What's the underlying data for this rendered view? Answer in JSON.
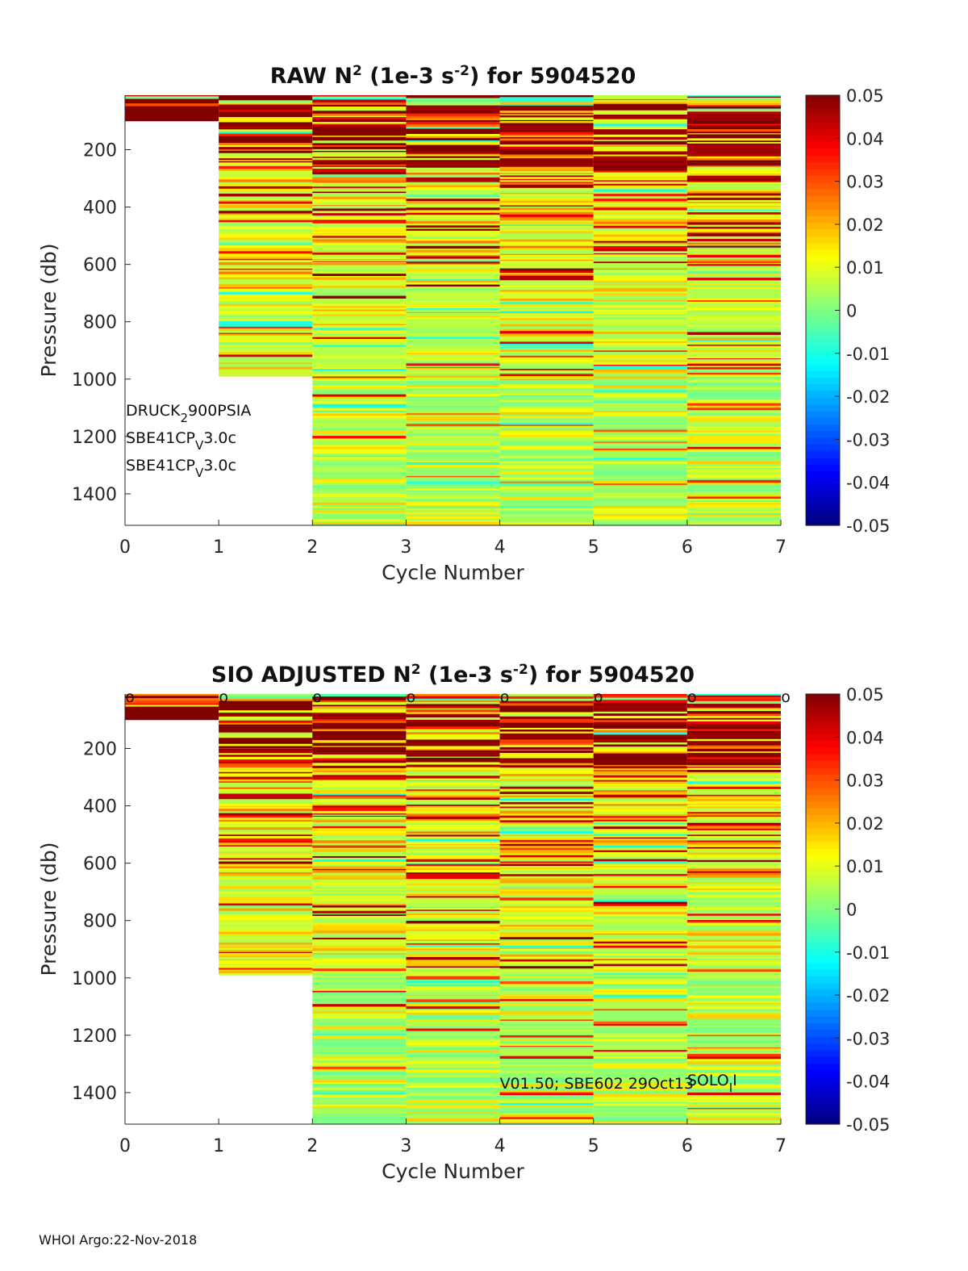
{
  "footer": "WHOI Argo:22-Nov-2018",
  "chart_data": [
    {
      "type": "heatmap",
      "id": "raw",
      "title_prefix": "RAW N",
      "title_sup": "2",
      "title_mid": " (1e-3 s",
      "title_sup2": "-2",
      "title_suffix": ") for 5904520",
      "xlabel": "Cycle Number",
      "ylabel": "Pressure (db)",
      "xlim": [
        0,
        7
      ],
      "ylim": [
        1510,
        10
      ],
      "xticks": [
        "0",
        "1",
        "2",
        "3",
        "4",
        "5",
        "6",
        "7"
      ],
      "yticks": [
        "200",
        "400",
        "600",
        "800",
        "1000",
        "1200",
        "1400"
      ],
      "ytick_values": [
        200,
        400,
        600,
        800,
        1000,
        1200,
        1400
      ],
      "colorbar": {
        "min": -0.05,
        "max": 0.05,
        "ticks": [
          "0.05",
          "0.04",
          "0.03",
          "0.02",
          "0.01",
          "0",
          "-0.01",
          "-0.02",
          "-0.03",
          "-0.04",
          "-0.05"
        ],
        "tick_values": [
          0.05,
          0.04,
          0.03,
          0.02,
          0.01,
          0,
          -0.01,
          -0.02,
          -0.03,
          -0.04,
          -0.05
        ],
        "colormap": "jet"
      },
      "profiles": [
        {
          "cycle": 0,
          "max_pressure": 100
        },
        {
          "cycle": 1,
          "max_pressure": 990
        },
        {
          "cycle": 2,
          "max_pressure": 1510
        },
        {
          "cycle": 3,
          "max_pressure": 1510
        },
        {
          "cycle": 4,
          "max_pressure": 1510
        },
        {
          "cycle": 5,
          "max_pressure": 1510
        },
        {
          "cycle": 6,
          "max_pressure": 1510
        }
      ],
      "annotations": [
        {
          "base": "DRUCK",
          "sub": "2",
          "rest": "900PSIA"
        },
        {
          "base": "SBE41CP",
          "sub": "V",
          "rest": "3.0c"
        },
        {
          "base": "SBE41CP",
          "sub": "V",
          "rest": "3.0c"
        }
      ],
      "markers": []
    },
    {
      "type": "heatmap",
      "id": "adj",
      "title_prefix": "SIO  ADJUSTED N",
      "title_sup": "2",
      "title_mid": " (1e-3 s",
      "title_sup2": "-2",
      "title_suffix": ") for 5904520",
      "xlabel": "Cycle Number",
      "ylabel": "Pressure (db)",
      "xlim": [
        0,
        7
      ],
      "ylim": [
        1510,
        10
      ],
      "xticks": [
        "0",
        "1",
        "2",
        "3",
        "4",
        "5",
        "6",
        "7"
      ],
      "yticks": [
        "200",
        "400",
        "600",
        "800",
        "1000",
        "1200",
        "1400"
      ],
      "ytick_values": [
        200,
        400,
        600,
        800,
        1000,
        1200,
        1400
      ],
      "colorbar": {
        "min": -0.05,
        "max": 0.05,
        "ticks": [
          "0.05",
          "0.04",
          "0.03",
          "0.02",
          "0.01",
          "0",
          "-0.01",
          "-0.02",
          "-0.03",
          "-0.04",
          "-0.05"
        ],
        "tick_values": [
          0.05,
          0.04,
          0.03,
          0.02,
          0.01,
          0,
          -0.01,
          -0.02,
          -0.03,
          -0.04,
          -0.05
        ],
        "colormap": "jet"
      },
      "profiles": [
        {
          "cycle": 0,
          "max_pressure": 100
        },
        {
          "cycle": 1,
          "max_pressure": 990
        },
        {
          "cycle": 2,
          "max_pressure": 1510
        },
        {
          "cycle": 3,
          "max_pressure": 1510
        },
        {
          "cycle": 4,
          "max_pressure": 1510
        },
        {
          "cycle": 5,
          "max_pressure": 1510
        },
        {
          "cycle": 6,
          "max_pressure": 1510
        }
      ],
      "annotations": [],
      "version_note": "V01.50; SBE602 29Oct13",
      "solo_note": {
        "base": "SOLO",
        "sub": "I",
        "rest": "I"
      },
      "markers": [
        {
          "cycle": 0,
          "label": "o"
        },
        {
          "cycle": 1,
          "label": "o"
        },
        {
          "cycle": 2,
          "label": "o"
        },
        {
          "cycle": 3,
          "label": "o"
        },
        {
          "cycle": 4,
          "label": "o"
        },
        {
          "cycle": 5,
          "label": "o"
        },
        {
          "cycle": 6,
          "label": "o"
        },
        {
          "cycle": 7,
          "label": "o"
        }
      ]
    }
  ]
}
